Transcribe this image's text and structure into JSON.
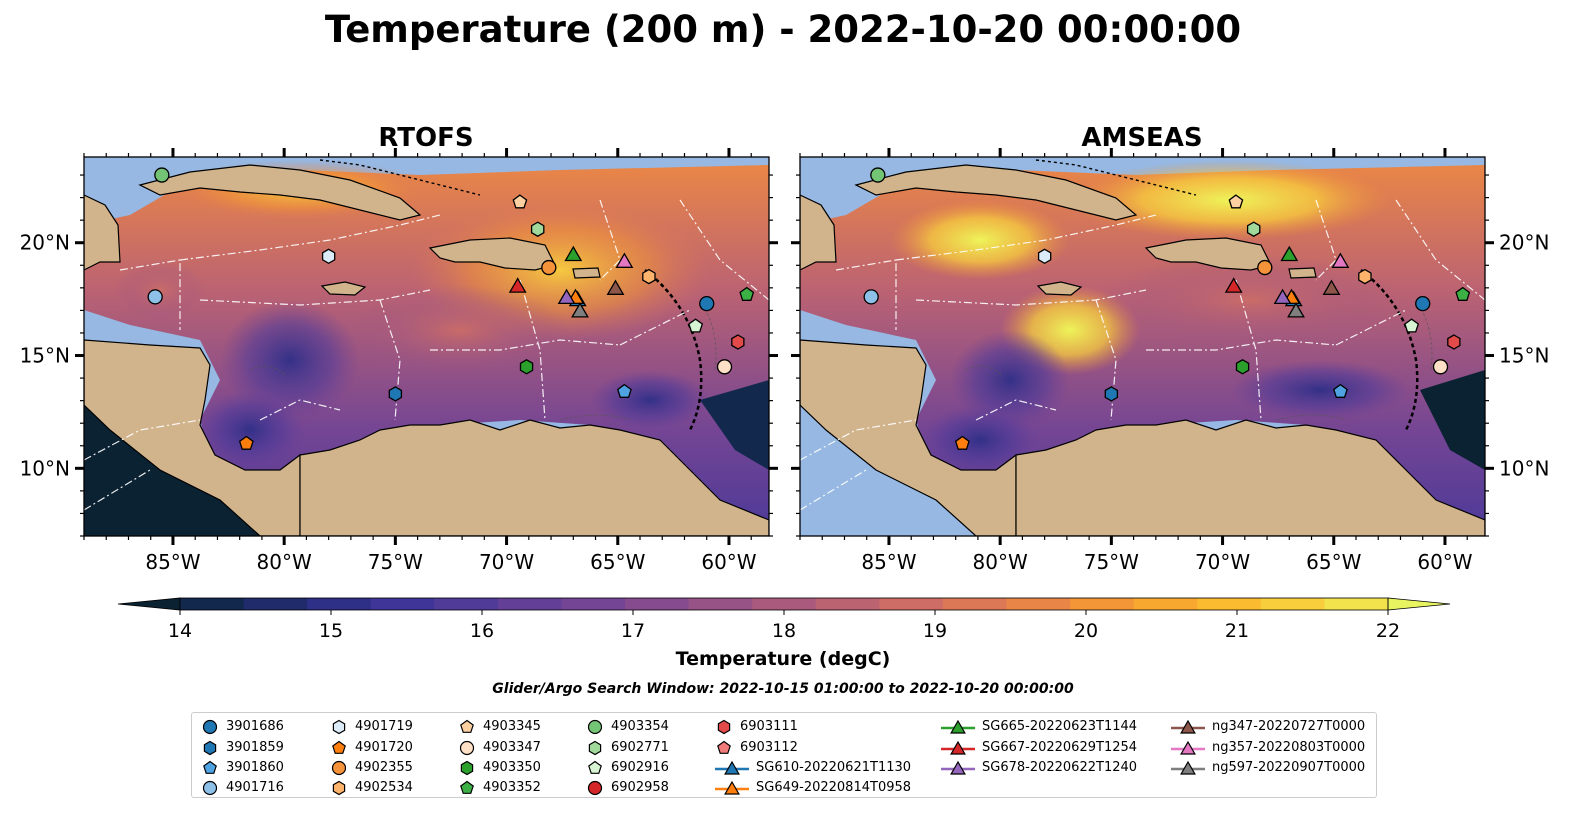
{
  "figure": {
    "title": "Temperature (200 m) - 2022-10-20 00:00:00",
    "search_window": "Glider/Argo Search Window: 2022-10-15 01:00:00 to 2022-10-20 00:00:00"
  },
  "panels": [
    {
      "title": "RTOFS"
    },
    {
      "title": "AMSEAS"
    }
  ],
  "axes": {
    "lon_ticks": [
      "85°W",
      "80°W",
      "75°W",
      "70°W",
      "65°W",
      "60°W"
    ],
    "lat_ticks": [
      "20°N",
      "15°N",
      "10°N"
    ],
    "lon_range": [
      -89,
      -58.2
    ],
    "lat_range": [
      7,
      23.8
    ]
  },
  "colorbar": {
    "label": "Temperature (degC)",
    "ticks": [
      "14",
      "15",
      "16",
      "17",
      "18",
      "19",
      "20",
      "21",
      "22"
    ],
    "range": [
      14,
      22
    ],
    "extend": "both",
    "colors": [
      "#0b2233",
      "#12284d",
      "#1f2b6a",
      "#2e2f87",
      "#3f3497",
      "#513b98",
      "#633f98",
      "#744594",
      "#864b8e",
      "#985386",
      "#aa5b7d",
      "#bc6372",
      "#cd6d66",
      "#dd7857",
      "#e98647",
      "#f29637",
      "#f8a82e",
      "#fbbb31",
      "#f8ce3d",
      "#f2e24c",
      "#e8f561"
    ]
  },
  "map_colors": {
    "land": "#d2b48c",
    "shallow_ocean": "#96b8e2",
    "deep_ocean": "#0b2233"
  },
  "legend": {
    "entries": [
      {
        "label": "3901686",
        "marker": "circle",
        "color": "#1f77b4"
      },
      {
        "label": "3901859",
        "marker": "hexagon",
        "color": "#1f77b4"
      },
      {
        "label": "3901860",
        "marker": "pentagon",
        "color": "#4fa3e3"
      },
      {
        "label": "4901716",
        "marker": "circle",
        "color": "#8ec1e8"
      },
      {
        "label": "4901719",
        "marker": "hexagon",
        "color": "#dcebf8"
      },
      {
        "label": "4901720",
        "marker": "pentagon",
        "color": "#ff7f0e"
      },
      {
        "label": "4902355",
        "marker": "circle",
        "color": "#f5933a"
      },
      {
        "label": "4902534",
        "marker": "hexagon",
        "color": "#fdb36b"
      },
      {
        "label": "4903345",
        "marker": "pentagon",
        "color": "#fdd0a2"
      },
      {
        "label": "4903347",
        "marker": "circle",
        "color": "#fde0c5"
      },
      {
        "label": "4903350",
        "marker": "hexagon",
        "color": "#2ca02c"
      },
      {
        "label": "4903352",
        "marker": "pentagon",
        "color": "#3cb044"
      },
      {
        "label": "4903354",
        "marker": "circle",
        "color": "#74c476"
      },
      {
        "label": "6902771",
        "marker": "hexagon",
        "color": "#a1d99b"
      },
      {
        "label": "6902916",
        "marker": "pentagon",
        "color": "#d7f5d3"
      },
      {
        "label": "6902958",
        "marker": "circle",
        "color": "#d62728"
      },
      {
        "label": "6903111",
        "marker": "hexagon",
        "color": "#e34a4a"
      },
      {
        "label": "6903112",
        "marker": "pentagon",
        "color": "#ef7b7b"
      },
      {
        "label": "SG610-20220621T1130",
        "marker": "triangle-line",
        "color": "#1f77b4"
      },
      {
        "label": "SG649-20220814T0958",
        "marker": "triangle-line",
        "color": "#ff7f0e"
      },
      {
        "label": "SG665-20220623T1144",
        "marker": "triangle-line",
        "color": "#2ca02c"
      },
      {
        "label": "SG667-20220629T1254",
        "marker": "triangle-line",
        "color": "#d62728"
      },
      {
        "label": "SG678-20220622T1240",
        "marker": "triangle-line",
        "color": "#9467bd"
      },
      {
        "label": "ng347-20220727T0000",
        "marker": "triangle-line",
        "color": "#8c564b"
      },
      {
        "label": "ng357-20220803T0000",
        "marker": "triangle-line",
        "color": "#e377c2"
      },
      {
        "label": "ng597-20220907T0000",
        "marker": "triangle-line",
        "color": "#7f7f7f"
      }
    ]
  },
  "observations": [
    {
      "id": "3901686",
      "lon": -61.0,
      "lat": 17.3
    },
    {
      "id": "3901859",
      "lon": -75.0,
      "lat": 13.3
    },
    {
      "id": "3901860",
      "lon": -64.7,
      "lat": 13.4
    },
    {
      "id": "4901716",
      "lon": -85.8,
      "lat": 17.6
    },
    {
      "id": "4901719",
      "lon": -78.0,
      "lat": 19.4
    },
    {
      "id": "4901720",
      "lon": -81.7,
      "lat": 11.1
    },
    {
      "id": "4902355",
      "lon": -68.1,
      "lat": 18.9
    },
    {
      "id": "4902534",
      "lon": -63.6,
      "lat": 18.5
    },
    {
      "id": "4903345",
      "lon": -69.4,
      "lat": 21.8
    },
    {
      "id": "4903347",
      "lon": -60.2,
      "lat": 14.5
    },
    {
      "id": "4903350",
      "lon": -69.1,
      "lat": 14.5
    },
    {
      "id": "4903352",
      "lon": -59.2,
      "lat": 17.7
    },
    {
      "id": "4903354",
      "lon": -85.5,
      "lat": 23.0
    },
    {
      "id": "6902771",
      "lon": -68.6,
      "lat": 20.6
    },
    {
      "id": "6902916",
      "lon": -61.5,
      "lat": 16.3
    },
    {
      "id": "6903111",
      "lon": -59.6,
      "lat": 15.6
    },
    {
      "id": "SG610-20220621T1130",
      "lon": -66.8,
      "lat": 17.5
    },
    {
      "id": "SG649-20220814T0958",
      "lon": -66.9,
      "lat": 17.6
    },
    {
      "id": "SG665-20220623T1144",
      "lon": -67.0,
      "lat": 19.5
    },
    {
      "id": "SG667-20220629T1254",
      "lon": -69.5,
      "lat": 18.1
    },
    {
      "id": "SG678-20220622T1240",
      "lon": -67.3,
      "lat": 17.6
    },
    {
      "id": "ng347-20220727T0000",
      "lon": -65.1,
      "lat": 18.0
    },
    {
      "id": "ng357-20220803T0000",
      "lon": -64.7,
      "lat": 19.2
    },
    {
      "id": "ng597-20220907T0000",
      "lon": -66.7,
      "lat": 17.0
    }
  ]
}
